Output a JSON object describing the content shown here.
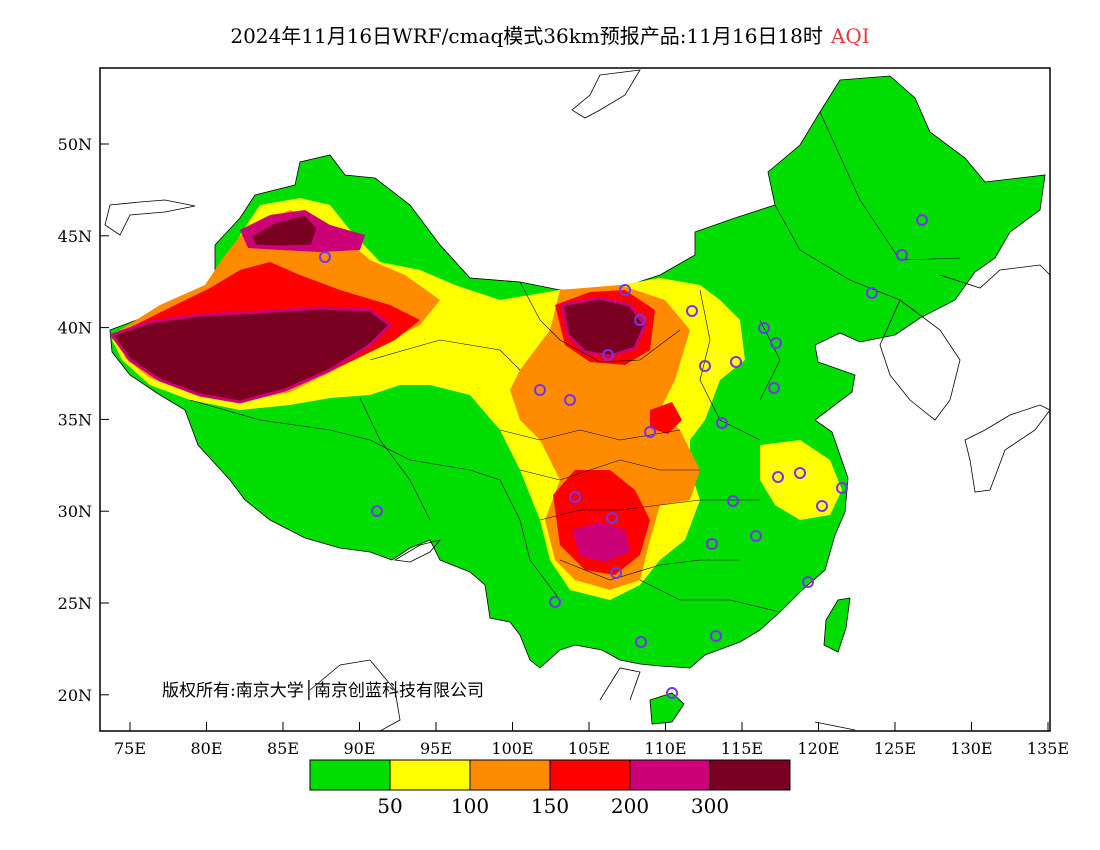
{
  "title": {
    "text": "2024年11月16日WRF/cmaq模式36km预报产品:11月16日18时",
    "variable": "AQI"
  },
  "copyright": "版权所有:南京大学│南京创蓝科技有限公司",
  "axes": {
    "lon_ticks": [
      "75E",
      "80E",
      "85E",
      "90E",
      "95E",
      "100E",
      "105E",
      "110E",
      "115E",
      "120E",
      "125E",
      "130E",
      "135E"
    ],
    "lat_ticks": [
      "50N",
      "45N",
      "40N",
      "35N",
      "30N",
      "25N",
      "20N"
    ]
  },
  "colorbar": {
    "colors": [
      "#00dd00",
      "#ffff00",
      "#ff8c00",
      "#ff0000",
      "#cc0077",
      "#7a0022"
    ],
    "labels": [
      "50",
      "100",
      "150",
      "200",
      "300"
    ]
  },
  "colors": {
    "good": "#00dd00",
    "moderate": "#ffff00",
    "unhealthy_sensitive": "#ff8c00",
    "unhealthy": "#ff0000",
    "very_unhealthy": "#cc0077",
    "hazardous": "#7a0022",
    "station_marker": "#7733ee"
  }
}
